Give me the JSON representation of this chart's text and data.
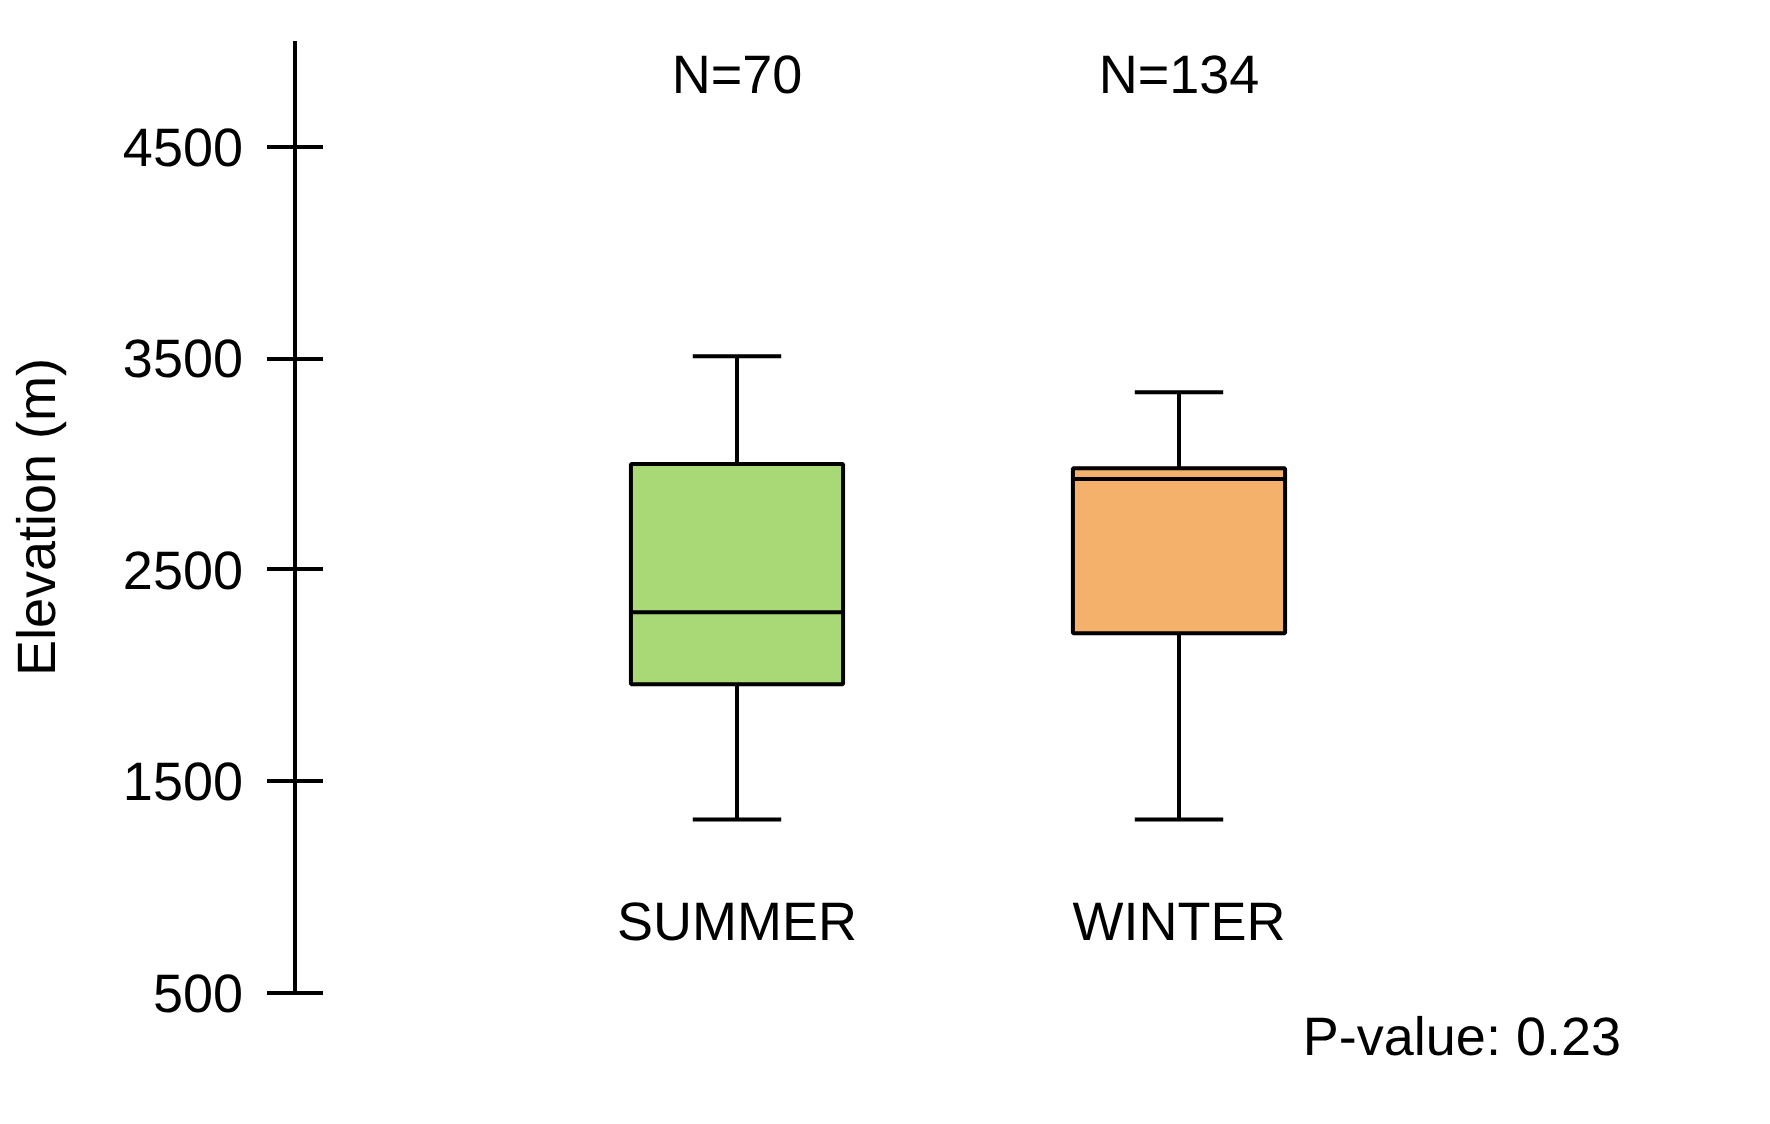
{
  "chart_data": {
    "type": "box",
    "ylabel": "Elevation (m)",
    "categories": [
      "SUMMER",
      "WINTER"
    ],
    "series": [
      {
        "boxes": [
          {
            "low": 1320,
            "q1": 1960,
            "median": 2300,
            "q3": 3000,
            "high": 3510
          },
          {
            "low": 1320,
            "q1": 2200,
            "median": 2930,
            "q3": 2980,
            "high": 3340
          }
        ],
        "colors": [
          "#a9d977",
          "#f4b16b"
        ]
      }
    ],
    "ylim": [
      500,
      5000
    ],
    "yticks": [
      500,
      1500,
      2500,
      3500,
      4500
    ],
    "annotations": [
      "N=70",
      "N=134",
      "P-value: 0.23"
    ],
    "grid": false
  }
}
